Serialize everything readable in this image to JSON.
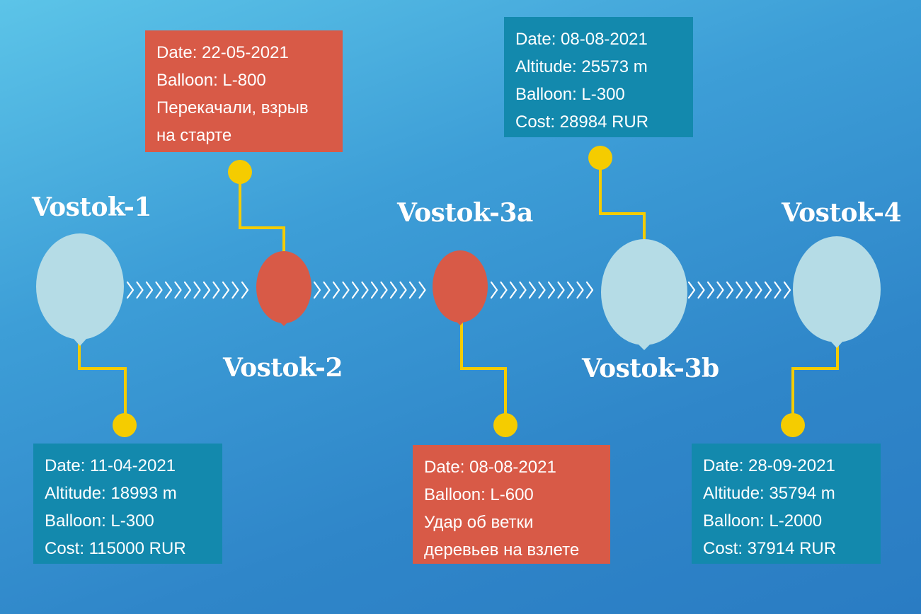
{
  "colors": {
    "success_card": "#1389ad",
    "fail_card": "#d85a47",
    "balloon_success": "#b5dce6",
    "balloon_fail": "#d85a47",
    "connector": "#f5cc00",
    "chevron": "#ffffff"
  },
  "launches": [
    {
      "name": "Vostok-1",
      "status": "success",
      "lines": [
        "Date: 11-04-2021",
        "Altitude: 18993 m",
        "Balloon: L-300",
        "Cost: 115000 RUR"
      ]
    },
    {
      "name": "Vostok-2",
      "status": "fail",
      "lines": [
        "Date: 22-05-2021",
        "Balloon: L-800",
        "Перекачали, взрыв на старте"
      ]
    },
    {
      "name": "Vostok-3a",
      "status": "fail",
      "lines": [
        "Date: 08-08-2021",
        "Balloon: L-600",
        "Удар об ветки деревьев на взлете"
      ]
    },
    {
      "name": "Vostok-3b",
      "status": "success",
      "lines": [
        "Date: 08-08-2021",
        "Altitude: 25573 m",
        "Balloon: L-300",
        "Cost: 28984 RUR"
      ]
    },
    {
      "name": "Vostok-4",
      "status": "success",
      "lines": [
        "Date: 28-09-2021",
        "Altitude: 35794 m",
        "Balloon: L-2000",
        "Cost: 37914 RUR"
      ]
    }
  ]
}
